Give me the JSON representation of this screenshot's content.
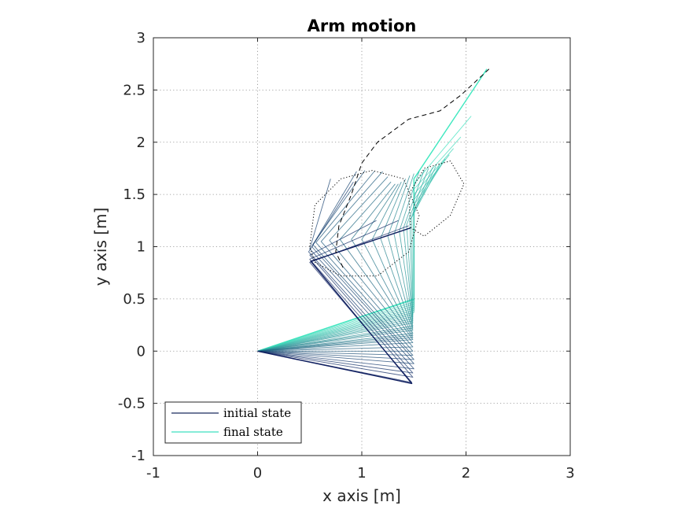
{
  "chart_data": {
    "type": "line",
    "title": "Arm motion",
    "xlabel": "x axis [m]",
    "ylabel": "y axis [m]",
    "xlim": [
      -1,
      3
    ],
    "ylim": [
      -1,
      3
    ],
    "xticks": [
      -1,
      0,
      1,
      2,
      3
    ],
    "yticks": [
      -1,
      -0.5,
      0,
      0.5,
      1,
      1.5,
      2,
      2.5,
      3
    ],
    "xtick_labels": [
      "-1",
      "0",
      "1",
      "2",
      "3"
    ],
    "ytick_labels": [
      "-1",
      "-0.5",
      "0",
      "0.5",
      "1",
      "1.5",
      "2",
      "2.5",
      "3"
    ],
    "grid": true,
    "legend": {
      "position": "bottom-left",
      "entries": [
        {
          "name": "initial state",
          "color": "#1a2a5e"
        },
        {
          "name": "final state",
          "color": "#3fe0c0"
        }
      ]
    },
    "colors": {
      "initial": "#101f60",
      "final": "#40e8c0"
    },
    "arm_configurations": [
      [
        [
          0,
          0
        ],
        [
          1.48,
          -0.31
        ],
        [
          0.51,
          0.86
        ],
        [
          1.47,
          1.18
        ]
      ],
      [
        [
          0,
          0
        ],
        [
          1.48,
          -0.3
        ],
        [
          0.5,
          0.85
        ],
        [
          1.45,
          1.2
        ]
      ],
      [
        [
          0,
          0
        ],
        [
          1.49,
          -0.25
        ],
        [
          0.5,
          0.88
        ],
        [
          1.35,
          1.25
        ]
      ],
      [
        [
          0,
          0
        ],
        [
          1.49,
          -0.21
        ],
        [
          0.5,
          0.92
        ],
        [
          1.14,
          1.25
        ]
      ],
      [
        [
          0,
          0
        ],
        [
          1.5,
          -0.17
        ],
        [
          0.49,
          0.95
        ],
        [
          0.92,
          1.62
        ]
      ],
      [
        [
          0,
          0
        ],
        [
          1.5,
          -0.12
        ],
        [
          0.5,
          0.98
        ],
        [
          0.7,
          1.65
        ]
      ],
      [
        [
          0,
          0
        ],
        [
          1.5,
          -0.08
        ],
        [
          0.52,
          1.0
        ],
        [
          0.95,
          1.72
        ]
      ],
      [
        [
          0,
          0
        ],
        [
          1.49,
          -0.04
        ],
        [
          0.53,
          1.02
        ],
        [
          1.03,
          1.73
        ]
      ],
      [
        [
          0,
          0
        ],
        [
          1.49,
          0.0
        ],
        [
          0.56,
          1.04
        ],
        [
          1.12,
          1.72
        ]
      ],
      [
        [
          0,
          0
        ],
        [
          1.49,
          0.04
        ],
        [
          0.61,
          1.05
        ],
        [
          1.2,
          1.72
        ]
      ],
      [
        [
          0,
          0
        ],
        [
          1.49,
          0.08
        ],
        [
          0.69,
          1.06
        ],
        [
          1.25,
          1.67
        ]
      ],
      [
        [
          0,
          0
        ],
        [
          1.49,
          0.11
        ],
        [
          0.79,
          1.07
        ],
        [
          1.28,
          1.62
        ]
      ],
      [
        [
          0,
          0
        ],
        [
          1.49,
          0.13
        ],
        [
          0.9,
          1.07
        ],
        [
          1.32,
          1.6
        ]
      ],
      [
        [
          0,
          0
        ],
        [
          1.49,
          0.15
        ],
        [
          1.0,
          1.07
        ],
        [
          1.35,
          1.6
        ]
      ],
      [
        [
          0,
          0
        ],
        [
          1.49,
          0.17
        ],
        [
          1.1,
          1.07
        ],
        [
          1.38,
          1.62
        ]
      ],
      [
        [
          0,
          0
        ],
        [
          1.49,
          0.2
        ],
        [
          1.18,
          1.08
        ],
        [
          1.42,
          1.65
        ]
      ],
      [
        [
          0,
          0
        ],
        [
          1.49,
          0.22
        ],
        [
          1.25,
          1.1
        ],
        [
          1.46,
          1.68
        ]
      ],
      [
        [
          0,
          0
        ],
        [
          1.49,
          0.24
        ],
        [
          1.31,
          1.12
        ],
        [
          1.5,
          1.7
        ]
      ],
      [
        [
          0,
          0
        ],
        [
          1.49,
          0.27
        ],
        [
          1.36,
          1.15
        ],
        [
          1.55,
          1.72
        ]
      ],
      [
        [
          0,
          0
        ],
        [
          1.49,
          0.29
        ],
        [
          1.4,
          1.18
        ],
        [
          1.6,
          1.74
        ]
      ],
      [
        [
          0,
          0
        ],
        [
          1.49,
          0.31
        ],
        [
          1.43,
          1.21
        ],
        [
          1.64,
          1.75
        ]
      ],
      [
        [
          0,
          0
        ],
        [
          1.49,
          0.33
        ],
        [
          1.46,
          1.25
        ],
        [
          1.68,
          1.76
        ]
      ],
      [
        [
          0,
          0
        ],
        [
          1.49,
          0.35
        ],
        [
          1.48,
          1.28
        ],
        [
          1.71,
          1.77
        ]
      ],
      [
        [
          0,
          0
        ],
        [
          1.5,
          0.37
        ],
        [
          1.5,
          1.32
        ],
        [
          1.75,
          1.79
        ]
      ],
      [
        [
          0,
          0
        ],
        [
          1.5,
          0.39
        ],
        [
          1.5,
          1.36
        ],
        [
          1.78,
          1.81
        ]
      ],
      [
        [
          0,
          0
        ],
        [
          1.5,
          0.41
        ],
        [
          1.5,
          1.4
        ],
        [
          1.8,
          1.84
        ]
      ],
      [
        [
          0,
          0
        ],
        [
          1.5,
          0.43
        ],
        [
          1.5,
          1.45
        ],
        [
          1.84,
          1.88
        ]
      ],
      [
        [
          0,
          0
        ],
        [
          1.5,
          0.45
        ],
        [
          1.5,
          1.5
        ],
        [
          1.88,
          1.94
        ]
      ],
      [
        [
          0,
          0
        ],
        [
          1.5,
          0.47
        ],
        [
          1.5,
          1.55
        ],
        [
          1.95,
          2.05
        ]
      ],
      [
        [
          0,
          0
        ],
        [
          1.5,
          0.49
        ],
        [
          1.5,
          1.6
        ],
        [
          2.05,
          2.25
        ]
      ],
      [
        [
          0,
          0
        ],
        [
          1.5,
          0.5
        ],
        [
          1.5,
          1.65
        ],
        [
          2.2,
          2.7
        ]
      ]
    ],
    "paths": [
      {
        "name": "end-effector path",
        "style": "dashed",
        "points": [
          [
            0.82,
            0.8
          ],
          [
            0.75,
            0.95
          ],
          [
            0.78,
            1.2
          ],
          [
            0.9,
            1.5
          ],
          [
            1.0,
            1.8
          ],
          [
            1.15,
            2.0
          ],
          [
            1.45,
            2.22
          ],
          [
            1.75,
            2.3
          ],
          [
            1.95,
            2.45
          ],
          [
            2.22,
            2.7
          ]
        ]
      },
      {
        "name": "elbow circle A",
        "style": "dotted",
        "points": [
          [
            0.5,
            1.0
          ],
          [
            0.55,
            1.4
          ],
          [
            0.8,
            1.65
          ],
          [
            1.1,
            1.73
          ],
          [
            1.4,
            1.65
          ],
          [
            1.55,
            1.3
          ],
          [
            1.45,
            0.95
          ],
          [
            1.15,
            0.72
          ],
          [
            0.8,
            0.72
          ],
          [
            0.55,
            0.85
          ],
          [
            0.5,
            1.0
          ]
        ]
      },
      {
        "name": "elbow circle B",
        "style": "dotted",
        "points": [
          [
            1.47,
            1.18
          ],
          [
            1.45,
            1.5
          ],
          [
            1.6,
            1.75
          ],
          [
            1.85,
            1.82
          ],
          [
            1.98,
            1.6
          ],
          [
            1.85,
            1.3
          ],
          [
            1.6,
            1.1
          ],
          [
            1.47,
            1.18
          ]
        ]
      }
    ]
  }
}
